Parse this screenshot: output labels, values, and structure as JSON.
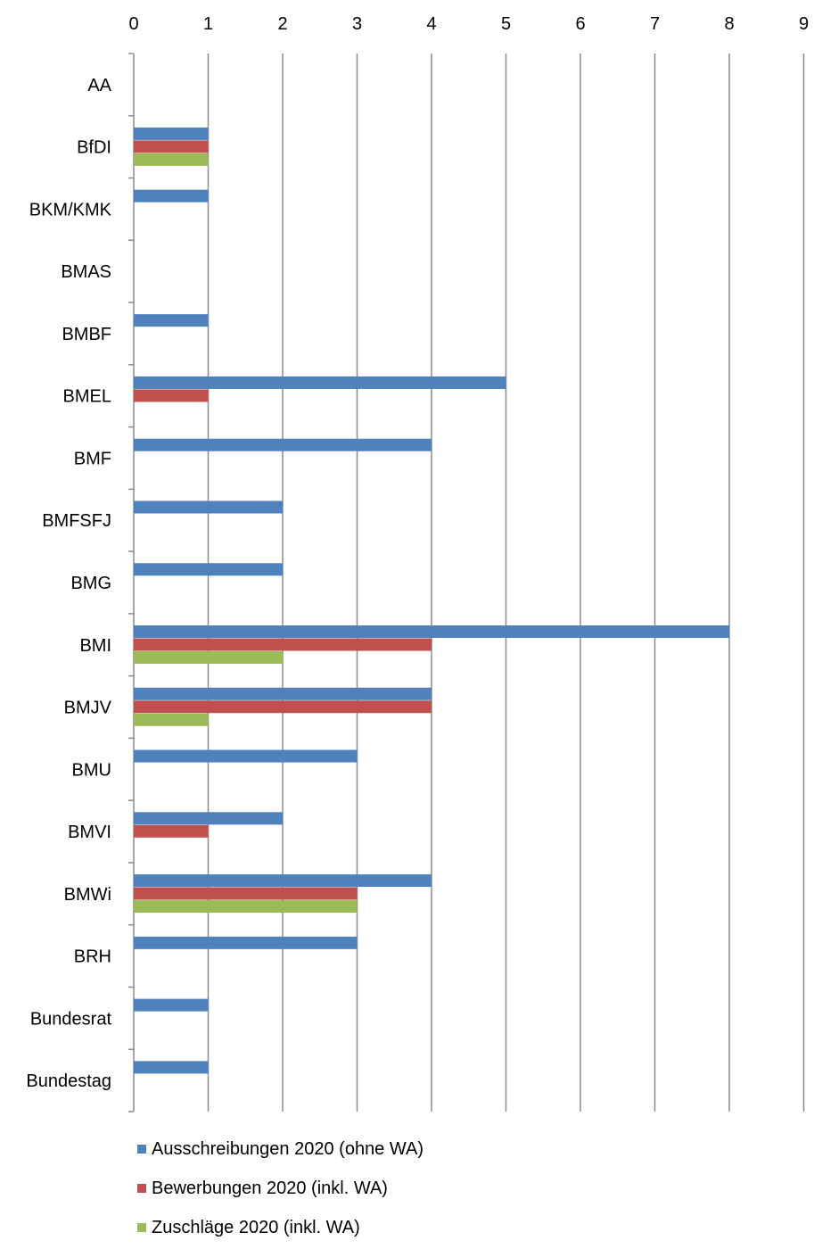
{
  "chart_data": {
    "type": "bar",
    "orientation": "horizontal",
    "x_ticks": [
      "0",
      "1",
      "2",
      "3",
      "4",
      "5",
      "6",
      "7",
      "8",
      "9"
    ],
    "xlim": [
      0,
      9
    ],
    "grid": "vertical",
    "legend_position": "bottom",
    "categories": [
      "AA",
      "BfDI",
      "BKM/KMK",
      "BMAS",
      "BMBF",
      "BMEL",
      "BMF",
      "BMFSFJ",
      "BMG",
      "BMI",
      "BMJV",
      "BMU",
      "BMVI",
      "BMWi",
      "BRH",
      "Bundesrat",
      "Bundestag"
    ],
    "series": [
      {
        "name": "Ausschreibungen 2020 (ohne WA)",
        "color": "#4f81bd",
        "values": [
          0,
          1,
          1,
          0,
          1,
          5,
          4,
          2,
          2,
          8,
          4,
          3,
          2,
          4,
          3,
          1,
          1
        ]
      },
      {
        "name": "Bewerbungen 2020 (inkl. WA)",
        "color": "#c0504d",
        "values": [
          0,
          1,
          0,
          0,
          0,
          1,
          0,
          0,
          0,
          4,
          4,
          0,
          1,
          3,
          0,
          0,
          0
        ]
      },
      {
        "name": "Zuschläge 2020 (inkl. WA)",
        "color": "#9bbb59",
        "values": [
          0,
          1,
          0,
          0,
          0,
          0,
          0,
          0,
          0,
          2,
          1,
          0,
          0,
          3,
          0,
          0,
          0
        ]
      }
    ]
  }
}
